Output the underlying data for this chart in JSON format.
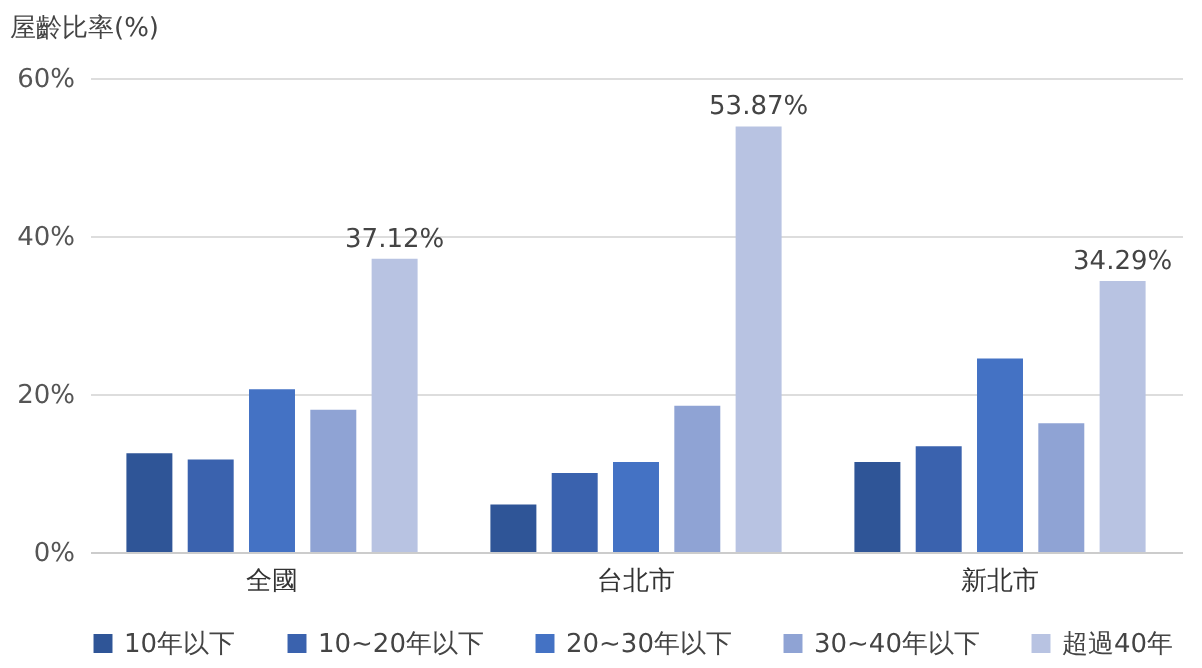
{
  "chart_data": {
    "type": "bar",
    "ylabel": "屋齡比率(%)",
    "categories": [
      "全國",
      "台北市",
      "新北市"
    ],
    "series": [
      {
        "name": "10年以下",
        "color": "#2f5597",
        "values": [
          12.5,
          6.0,
          11.4
        ]
      },
      {
        "name": "10~20年以下",
        "color": "#3a62ae",
        "values": [
          11.7,
          10.0,
          13.4
        ]
      },
      {
        "name": "20~30年以下",
        "color": "#4472c4",
        "values": [
          20.6,
          11.4,
          24.5
        ]
      },
      {
        "name": "30~40年以下",
        "color": "#8fa3d4",
        "values": [
          18.0,
          18.5,
          16.3
        ]
      },
      {
        "name": "超過40年",
        "color": "#b8c3e2",
        "values": [
          37.12,
          53.87,
          34.29
        ],
        "value_labels": [
          "37.12%",
          "53.87%",
          "34.29%"
        ]
      }
    ],
    "ylim": [
      0,
      60
    ],
    "yticks": [
      {
        "value": 0,
        "label": "0%"
      },
      {
        "value": 20,
        "label": "20%"
      },
      {
        "value": 40,
        "label": "40%"
      },
      {
        "value": 60,
        "label": "60%"
      }
    ],
    "grid": "y",
    "legend": "bottom"
  }
}
